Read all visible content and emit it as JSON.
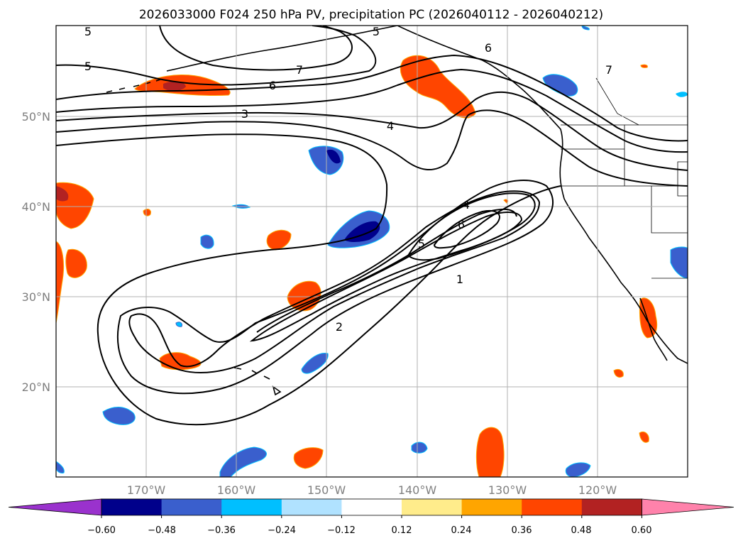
{
  "title": "2026033000 F024 250 hPa PV, precipitation PC (2026040112 - 2026040212)",
  "map": {
    "lat_labels": [
      "50°N",
      "40°N",
      "30°N",
      "20°N"
    ],
    "lon_labels": [
      "170°W",
      "160°W",
      "150°W",
      "140°W",
      "130°W",
      "120°W"
    ],
    "extent": {
      "lon_min": -180,
      "lon_max": -110,
      "lat_min": 10,
      "lat_max": 60
    },
    "contour_labels": [
      "5",
      "5",
      "5",
      "7",
      "6",
      "6",
      "3",
      "4",
      "7",
      "4",
      "6",
      "5",
      "1",
      "2"
    ]
  },
  "colorbar": {
    "ticks": [
      "−0.60",
      "−0.48",
      "−0.36",
      "−0.24",
      "−0.12",
      "0.12",
      "0.24",
      "0.36",
      "0.48",
      "0.60"
    ],
    "colors": [
      "#9a32cd",
      "#00008b",
      "#3a5fcd",
      "#00bfff",
      "#b0e2ff",
      "#ffffff",
      "#ffec8b",
      "#ffa500",
      "#ff4500",
      "#b22222",
      "#ff82ab"
    ]
  }
}
